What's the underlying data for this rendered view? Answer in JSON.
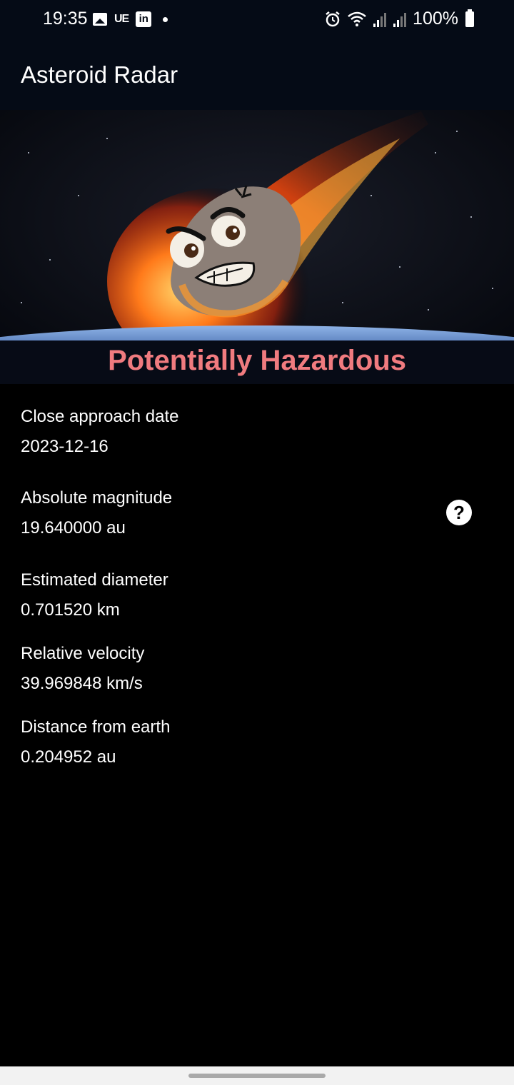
{
  "status_bar": {
    "time": "19:35",
    "left_icons": [
      "image-icon",
      "ue-icon",
      "linkedin-icon",
      "notification-dot-icon"
    ],
    "ue_text": "UE",
    "linkedin_text": "in",
    "right_icons": [
      "alarm-icon",
      "wifi-icon",
      "signal-icon",
      "signal-icon",
      "battery-icon"
    ],
    "battery_text": "100%"
  },
  "app_bar": {
    "title": "Asteroid Radar"
  },
  "hero": {
    "image_icon": "angry-flaming-asteroid-image",
    "label": "Potentially Hazardous",
    "label_color": "#f07b7f"
  },
  "details": [
    {
      "label": "Close approach date",
      "value": "2023-12-16"
    },
    {
      "label": "Absolute magnitude",
      "value": "19.640000 au"
    },
    {
      "label": "Estimated diameter",
      "value": "0.701520 km"
    },
    {
      "label": "Relative velocity",
      "value": "39.969848 km/s"
    },
    {
      "label": "Distance from earth",
      "value": "0.204952 au"
    }
  ],
  "help_button": {
    "icon": "help-icon",
    "glyph": "?"
  },
  "colors": {
    "background": "#000000",
    "app_bar": "#050b16",
    "text": "#ffffff"
  }
}
